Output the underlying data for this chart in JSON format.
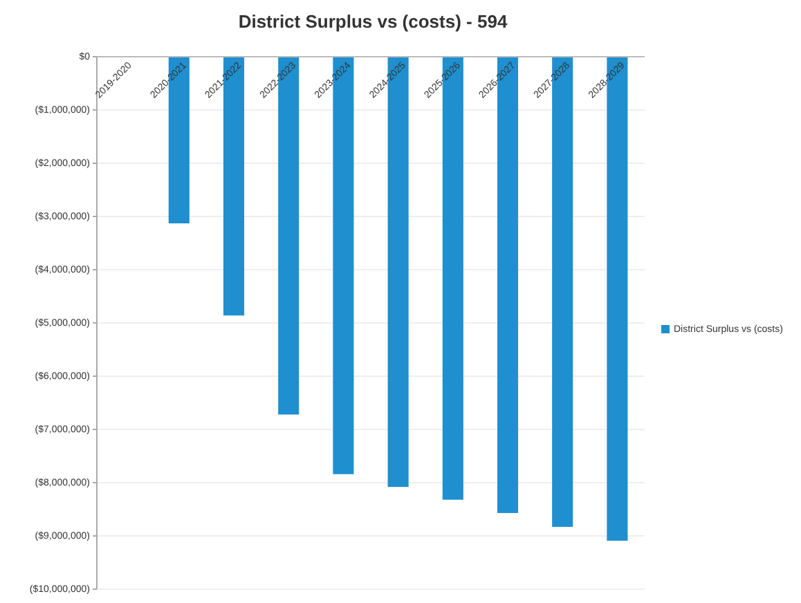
{
  "chart_data": {
    "type": "bar",
    "title": "District Surplus vs (costs) - 594",
    "categories": [
      "2019-2020",
      "2020-2021",
      "2021-2022",
      "2022-2023",
      "2023-2024",
      "2024-2025",
      "2025-2026",
      "2026-2027",
      "2027-2028",
      "2028-2029"
    ],
    "series": [
      {
        "name": "District Surplus vs (costs)",
        "color": "#1f8fcf",
        "values": [
          null,
          -3130000,
          -4860000,
          -6720000,
          -7840000,
          -8080000,
          -8320000,
          -8570000,
          -8830000,
          -9090000
        ]
      }
    ],
    "ylim": [
      -10000000,
      0
    ],
    "yticks": [
      {
        "value": 0,
        "label": "$0"
      },
      {
        "value": -1000000,
        "label": "($1,000,000)"
      },
      {
        "value": -2000000,
        "label": "($2,000,000)"
      },
      {
        "value": -3000000,
        "label": "($3,000,000)"
      },
      {
        "value": -4000000,
        "label": "($4,000,000)"
      },
      {
        "value": -5000000,
        "label": "($5,000,000)"
      },
      {
        "value": -6000000,
        "label": "($6,000,000)"
      },
      {
        "value": -7000000,
        "label": "($7,000,000)"
      },
      {
        "value": -8000000,
        "label": "($8,000,000)"
      },
      {
        "value": -9000000,
        "label": "($9,000,000)"
      },
      {
        "value": -10000000,
        "label": "($10,000,000)"
      }
    ],
    "grid": "y",
    "legend": "right"
  }
}
